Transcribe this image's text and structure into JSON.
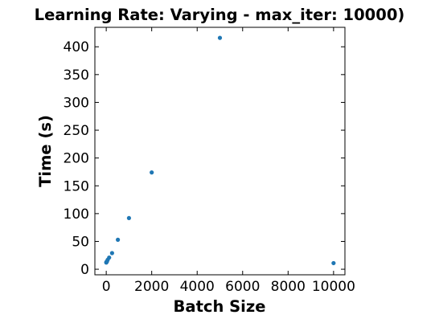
{
  "chart_data": {
    "type": "scatter",
    "title": "Learning Rate: Varying - max_iter: 10000)",
    "xlabel": "Batch Size",
    "ylabel": "Time (s)",
    "xlim": [
      -500,
      10500
    ],
    "ylim": [
      -10,
      435
    ],
    "xticks": [
      0,
      2000,
      4000,
      6000,
      8000,
      10000
    ],
    "yticks": [
      0,
      50,
      100,
      150,
      200,
      250,
      300,
      350,
      400
    ],
    "grid": false,
    "marker_color": "#1f77b4",
    "points": [
      {
        "x": 1,
        "y": 12
      },
      {
        "x": 8,
        "y": 13
      },
      {
        "x": 16,
        "y": 13
      },
      {
        "x": 32,
        "y": 14
      },
      {
        "x": 64,
        "y": 17
      },
      {
        "x": 128,
        "y": 21
      },
      {
        "x": 256,
        "y": 29
      },
      {
        "x": 512,
        "y": 53
      },
      {
        "x": 1000,
        "y": 92
      },
      {
        "x": 2000,
        "y": 174
      },
      {
        "x": 5000,
        "y": 416
      },
      {
        "x": 10000,
        "y": 11
      }
    ]
  }
}
